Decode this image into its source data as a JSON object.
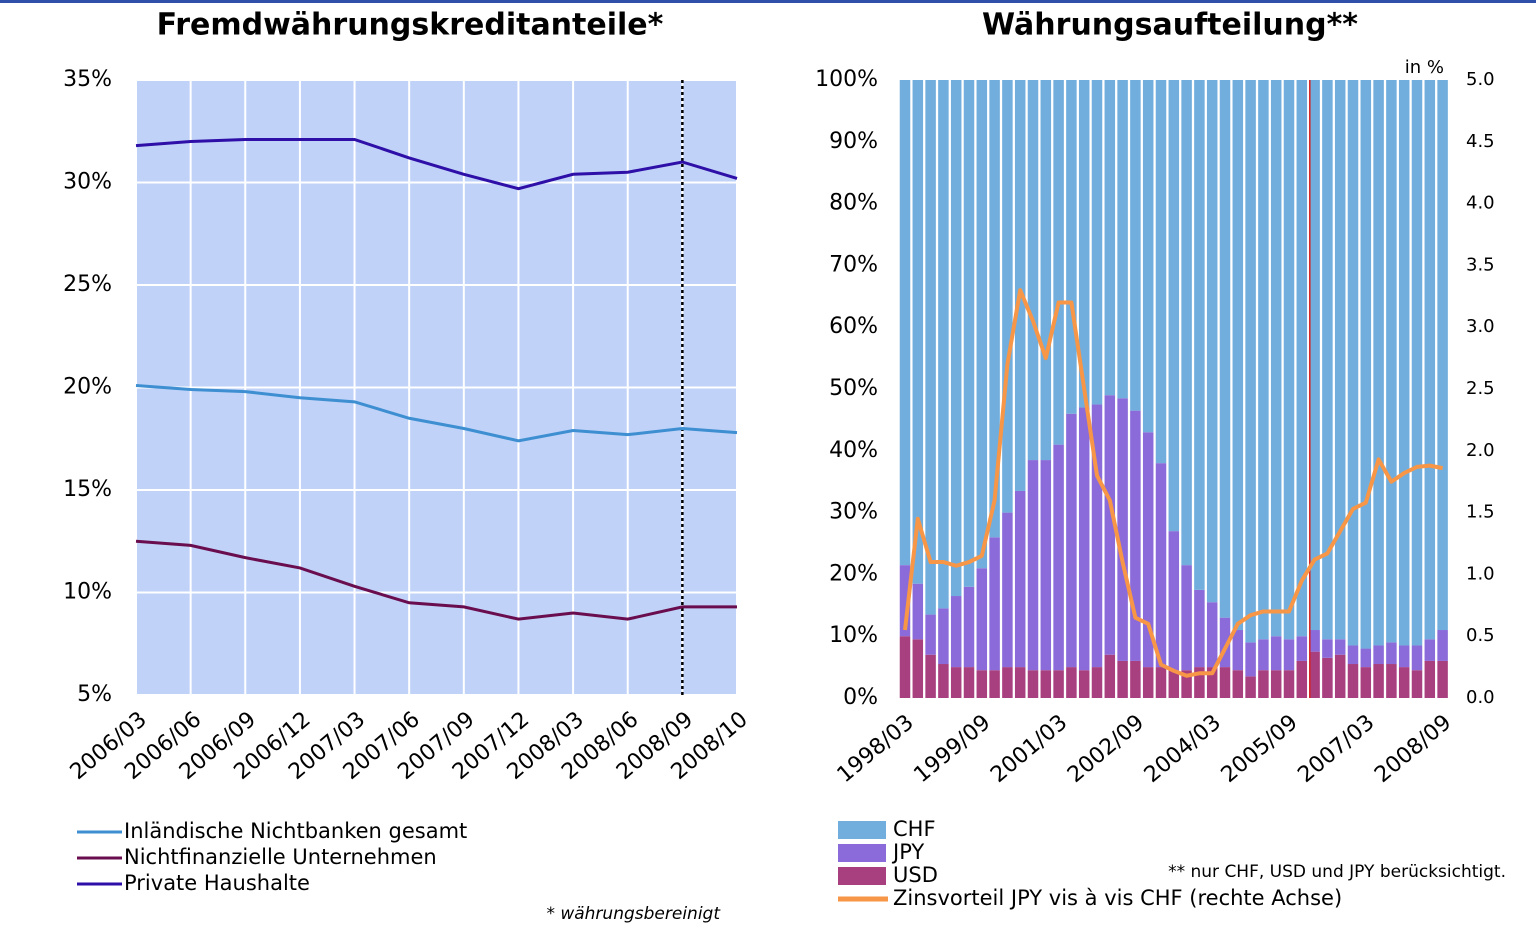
{
  "chart_data": [
    {
      "type": "line",
      "title": "Fremdwährungskreditanteile*",
      "categories": [
        "2006/03",
        "2006/06",
        "2006/09",
        "2006/12",
        "2007/03",
        "2007/06",
        "2007/09",
        "2007/12",
        "2008/03",
        "2008/06",
        "2008/09",
        "2008/10"
      ],
      "series": [
        {
          "name": "Inländische Nichtbanken gesamt",
          "color": "#3d8fd1",
          "values": [
            20.1,
            19.9,
            19.8,
            19.5,
            19.3,
            18.5,
            18.0,
            17.4,
            17.9,
            17.7,
            18.0,
            17.8
          ]
        },
        {
          "name": "Nichtfinanzielle Unternehmen",
          "color": "#6a0d4f",
          "values": [
            12.5,
            12.3,
            11.7,
            11.2,
            10.3,
            9.5,
            9.3,
            8.7,
            9.0,
            8.7,
            9.3,
            9.3
          ]
        },
        {
          "name": "Private Haushalte",
          "color": "#2e0fa8",
          "values": [
            31.8,
            32.0,
            32.1,
            32.1,
            32.1,
            31.2,
            30.4,
            29.7,
            30.4,
            30.5,
            31.0,
            30.2
          ]
        }
      ],
      "ylim": [
        5,
        35
      ],
      "yticks": [
        {
          "value": 5,
          "label": "5%"
        },
        {
          "value": 10,
          "label": "10%"
        },
        {
          "value": 15,
          "label": "15%"
        },
        {
          "value": 20,
          "label": "20%"
        },
        {
          "value": 25,
          "label": "25%"
        },
        {
          "value": 30,
          "label": "30%"
        },
        {
          "value": 35,
          "label": "35%"
        }
      ],
      "grid": true,
      "background": "#c0d2f8",
      "footnote": "* währungsbereinigt"
    },
    {
      "type": "bar",
      "stacked": true,
      "title": "Währungsaufteilung**",
      "categories": [
        "1998/03",
        null,
        null,
        null,
        null,
        null,
        "1999/09",
        null,
        null,
        null,
        null,
        null,
        "2001/03",
        null,
        null,
        null,
        null,
        null,
        "2002/09",
        null,
        null,
        null,
        null,
        null,
        "2004/03",
        null,
        null,
        null,
        null,
        null,
        "2005/09",
        null,
        null,
        null,
        null,
        null,
        "2007/03",
        null,
        null,
        null,
        null,
        null,
        "2008/09"
      ],
      "series": [
        {
          "name": "CHF",
          "color": "#72aedd",
          "values": [
            78.5,
            81.5,
            86.5,
            85.5,
            83.5,
            82,
            79,
            74,
            70,
            66.5,
            61.5,
            61.5,
            59,
            54,
            53,
            52.5,
            51,
            51.5,
            53.5,
            57,
            62,
            73,
            78.5,
            82.5,
            84.5,
            87,
            89,
            91,
            90.5,
            90,
            90.5,
            90,
            89,
            90.5,
            90.5,
            91.5,
            92,
            91.5,
            91,
            91.5,
            91.5,
            90.5,
            89
          ]
        },
        {
          "name": "JPY",
          "color": "#8b6ad9",
          "values": [
            11.5,
            9,
            6.5,
            9,
            11.5,
            13,
            16.5,
            21.5,
            25,
            28.5,
            34,
            34,
            36.5,
            41,
            42.5,
            42.5,
            42,
            42.5,
            40.5,
            38,
            33,
            22.5,
            17,
            12.5,
            10.5,
            8,
            6.5,
            5.5,
            5,
            5.5,
            5,
            4,
            3.5,
            3,
            2.5,
            3,
            3,
            3,
            3.5,
            3.5,
            4,
            3.5,
            5
          ]
        },
        {
          "name": "USD",
          "color": "#a8407f",
          "values": [
            10,
            9.5,
            7,
            5.5,
            5,
            5,
            4.5,
            4.5,
            5,
            5,
            4.5,
            4.5,
            4.5,
            5,
            4.5,
            5,
            7,
            6,
            6,
            5,
            5,
            4.5,
            4.5,
            5,
            5,
            5,
            4.5,
            3.5,
            4.5,
            4.5,
            4.5,
            6,
            7.5,
            6.5,
            7,
            5.5,
            5,
            5.5,
            5.5,
            5,
            4.5,
            6,
            6
          ]
        },
        {
          "name": "Zinsvorteil JPY vis à vis CHF (rechte Achse)",
          "type": "line",
          "axis": "y2",
          "color": "#f79646",
          "values": [
            0.55,
            1.45,
            1.1,
            1.1,
            1.07,
            1.1,
            1.15,
            1.6,
            2.7,
            3.3,
            3.05,
            2.75,
            3.2,
            3.2,
            2.5,
            1.8,
            1.6,
            1.1,
            0.65,
            0.6,
            0.27,
            0.22,
            0.18,
            0.2,
            0.2,
            0.4,
            0.6,
            0.67,
            0.7,
            0.7,
            0.7,
            0.95,
            1.12,
            1.17,
            1.35,
            1.53,
            1.58,
            1.93,
            1.75,
            1.82,
            1.87,
            1.88,
            1.86
          ]
        }
      ],
      "ylim": [
        0,
        100
      ],
      "yticks": [
        {
          "value": 0,
          "label": "0%"
        },
        {
          "value": 10,
          "label": "10%"
        },
        {
          "value": 20,
          "label": "20%"
        },
        {
          "value": 30,
          "label": "30%"
        },
        {
          "value": 40,
          "label": "40%"
        },
        {
          "value": 50,
          "label": "50%"
        },
        {
          "value": 60,
          "label": "60%"
        },
        {
          "value": 70,
          "label": "70%"
        },
        {
          "value": 80,
          "label": "80%"
        },
        {
          "value": 90,
          "label": "90%"
        },
        {
          "value": 100,
          "label": "100%"
        }
      ],
      "y2lim": [
        0,
        5
      ],
      "y2ticks": [
        {
          "value": 0,
          "label": "0.0"
        },
        0.5,
        {
          "value": 1,
          "label": "1.0"
        },
        1.5,
        {
          "value": 2,
          "label": "2.0"
        },
        2.5,
        {
          "value": 3,
          "label": "3.0"
        },
        3.5,
        {
          "value": 4,
          "label": "4.0"
        },
        4.5,
        {
          "value": 5,
          "label": "5.0"
        }
      ],
      "y2_label": "in %",
      "footnote": "** nur CHF, USD und JPY berücksichtigt."
    }
  ]
}
